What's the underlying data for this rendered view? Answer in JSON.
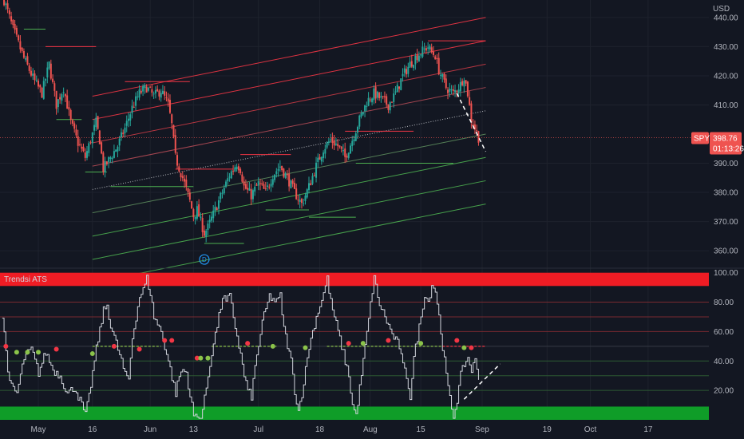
{
  "chart_data": [
    {
      "type": "candlestick",
      "symbol": "SPY",
      "currency": "USD",
      "last_price": "398.76",
      "countdown": "01:13:26",
      "ylim": [
        354,
        446
      ],
      "y_ticks": [
        "440.00",
        "430.00",
        "420.00",
        "410.00",
        "390.00",
        "380.00",
        "370.00",
        "360.00"
      ],
      "y_tick_values": [
        440,
        430,
        420,
        410,
        390,
        380,
        370,
        360
      ],
      "x_labels": [
        {
          "label": "May",
          "day": 0
        },
        {
          "label": "16",
          "day": 15
        },
        {
          "label": "Jun",
          "day": 31
        },
        {
          "label": "13",
          "day": 43
        },
        {
          "label": "Jul",
          "day": 61
        },
        {
          "label": "18",
          "day": 78
        },
        {
          "label": "Aug",
          "day": 92
        },
        {
          "label": "15",
          "day": 106
        },
        {
          "label": "Sep",
          "day": 123
        },
        {
          "label": "19",
          "day": 141
        },
        {
          "label": "Oct",
          "day": 153
        },
        {
          "label": "17",
          "day": 169
        }
      ],
      "price_path": [
        {
          "day": -10,
          "price": 448
        },
        {
          "day": -7,
          "price": 436
        },
        {
          "day": -4,
          "price": 426
        },
        {
          "day": -1,
          "price": 418
        },
        {
          "day": 1,
          "price": 414
        },
        {
          "day": 3,
          "price": 424
        },
        {
          "day": 5,
          "price": 410
        },
        {
          "day": 7,
          "price": 416
        },
        {
          "day": 9,
          "price": 404
        },
        {
          "day": 11,
          "price": 397
        },
        {
          "day": 13,
          "price": 392
        },
        {
          "day": 15,
          "price": 400
        },
        {
          "day": 16,
          "price": 404
        },
        {
          "day": 17,
          "price": 398
        },
        {
          "day": 18,
          "price": 388
        },
        {
          "day": 20,
          "price": 392
        },
        {
          "day": 22,
          "price": 396
        },
        {
          "day": 24,
          "price": 402
        },
        {
          "day": 26,
          "price": 409
        },
        {
          "day": 28,
          "price": 414
        },
        {
          "day": 30,
          "price": 416
        },
        {
          "day": 32,
          "price": 413
        },
        {
          "day": 34,
          "price": 415
        },
        {
          "day": 36,
          "price": 410
        },
        {
          "day": 37,
          "price": 403
        },
        {
          "day": 38,
          "price": 392
        },
        {
          "day": 40,
          "price": 385
        },
        {
          "day": 42,
          "price": 377
        },
        {
          "day": 43,
          "price": 372
        },
        {
          "day": 44,
          "price": 374
        },
        {
          "day": 46,
          "price": 366
        },
        {
          "day": 47,
          "price": 368
        },
        {
          "day": 49,
          "price": 374
        },
        {
          "day": 51,
          "price": 380
        },
        {
          "day": 53,
          "price": 386
        },
        {
          "day": 55,
          "price": 390
        },
        {
          "day": 56,
          "price": 388
        },
        {
          "day": 57,
          "price": 382
        },
        {
          "day": 59,
          "price": 379
        },
        {
          "day": 61,
          "price": 383
        },
        {
          "day": 63,
          "price": 380
        },
        {
          "day": 65,
          "price": 386
        },
        {
          "day": 67,
          "price": 389
        },
        {
          "day": 69,
          "price": 385
        },
        {
          "day": 71,
          "price": 380
        },
        {
          "day": 73,
          "price": 376
        },
        {
          "day": 75,
          "price": 382
        },
        {
          "day": 77,
          "price": 389
        },
        {
          "day": 79,
          "price": 395
        },
        {
          "day": 81,
          "price": 398
        },
        {
          "day": 83,
          "price": 396
        },
        {
          "day": 85,
          "price": 392
        },
        {
          "day": 87,
          "price": 398
        },
        {
          "day": 89,
          "price": 405
        },
        {
          "day": 91,
          "price": 411
        },
        {
          "day": 93,
          "price": 414
        },
        {
          "day": 95,
          "price": 412
        },
        {
          "day": 97,
          "price": 410
        },
        {
          "day": 99,
          "price": 414
        },
        {
          "day": 101,
          "price": 420
        },
        {
          "day": 103,
          "price": 424
        },
        {
          "day": 105,
          "price": 427
        },
        {
          "day": 107,
          "price": 429
        },
        {
          "day": 108,
          "price": 430
        },
        {
          "day": 109,
          "price": 428
        },
        {
          "day": 110,
          "price": 427
        },
        {
          "day": 111,
          "price": 422
        },
        {
          "day": 113,
          "price": 416
        },
        {
          "day": 115,
          "price": 414
        },
        {
          "day": 117,
          "price": 417
        },
        {
          "day": 118,
          "price": 420
        },
        {
          "day": 119,
          "price": 414
        },
        {
          "day": 120,
          "price": 405
        },
        {
          "day": 121,
          "price": 402
        },
        {
          "day": 122,
          "price": 398.8
        }
      ],
      "channel_lines": [
        {
          "from": [
            15,
            413
          ],
          "to": [
            124,
            440
          ],
          "color": "#f23645"
        },
        {
          "from": [
            15,
            405
          ],
          "to": [
            124,
            432
          ],
          "color": "#f23645"
        },
        {
          "from": [
            15,
            397
          ],
          "to": [
            124,
            424
          ],
          "color": "#c73a45"
        },
        {
          "from": [
            15,
            389
          ],
          "to": [
            124,
            416
          ],
          "color": "#b34a55"
        },
        {
          "from": [
            15,
            381
          ],
          "to": [
            124,
            408
          ],
          "color": "#787b86",
          "dashed": true
        },
        {
          "from": [
            15,
            373
          ],
          "to": [
            124,
            400
          ],
          "color": "#5b8a5c"
        },
        {
          "from": [
            15,
            365
          ],
          "to": [
            124,
            392
          ],
          "color": "#4caf50"
        },
        {
          "from": [
            15,
            357
          ],
          "to": [
            124,
            384
          ],
          "color": "#4caf50"
        },
        {
          "from": [
            15,
            349
          ],
          "to": [
            124,
            376
          ],
          "color": "#4caf50"
        }
      ],
      "resistance_lines": [
        {
          "day1": 2,
          "day2": 16,
          "price": 430
        },
        {
          "day1": 24,
          "day2": 42,
          "price": 418
        },
        {
          "day1": 38,
          "day2": 54,
          "price": 388
        },
        {
          "day1": 56,
          "day2": 70,
          "price": 393
        },
        {
          "day1": 85,
          "day2": 104,
          "price": 401
        },
        {
          "day1": 108,
          "day2": 124,
          "price": 432
        }
      ],
      "support_lines": [
        {
          "day1": -4,
          "day2": 2,
          "price": 436
        },
        {
          "day1": 5,
          "day2": 12,
          "price": 405
        },
        {
          "day1": 13,
          "day2": 19,
          "price": 387
        },
        {
          "day1": 20,
          "day2": 43,
          "price": 382
        },
        {
          "day1": 46,
          "day2": 57,
          "price": 362.5
        },
        {
          "day1": 63,
          "day2": 75,
          "price": 374
        },
        {
          "day1": 75,
          "day2": 88,
          "price": 371.5
        },
        {
          "day1": 88,
          "day2": 115,
          "price": 390
        }
      ],
      "trend_dash": {
        "from": [
          116,
          414
        ],
        "to": [
          124,
          394
        ]
      },
      "dividend_marker": {
        "day": 46,
        "price": 357,
        "label": "D"
      }
    },
    {
      "type": "line",
      "title": "Trendsi ATS",
      "ylim": [
        0,
        102
      ],
      "y_ticks": [
        "100.00",
        "80.00",
        "60.00",
        "40.00",
        "20.00"
      ],
      "y_tick_values": [
        100,
        80,
        60,
        40,
        20
      ],
      "overbought_band": [
        91,
        100
      ],
      "oversold_band": [
        0,
        9
      ],
      "level_lines": [
        80,
        70,
        60,
        40,
        30,
        20
      ],
      "midline": 50,
      "osc_path": [
        {
          "day": -10,
          "value": 70
        },
        {
          "day": -8,
          "value": 24
        },
        {
          "day": -6,
          "value": 18
        },
        {
          "day": -4,
          "value": 42
        },
        {
          "day": -2,
          "value": 48
        },
        {
          "day": 0,
          "value": 32
        },
        {
          "day": 2,
          "value": 46
        },
        {
          "day": 4,
          "value": 34
        },
        {
          "day": 6,
          "value": 30
        },
        {
          "day": 8,
          "value": 18
        },
        {
          "day": 10,
          "value": 22
        },
        {
          "day": 12,
          "value": 10
        },
        {
          "day": 13,
          "value": 3
        },
        {
          "day": 14,
          "value": 16
        },
        {
          "day": 16,
          "value": 48
        },
        {
          "day": 18,
          "value": 74
        },
        {
          "day": 19,
          "value": 78
        },
        {
          "day": 20,
          "value": 64
        },
        {
          "day": 22,
          "value": 48
        },
        {
          "day": 23,
          "value": 40
        },
        {
          "day": 24,
          "value": 30
        },
        {
          "day": 25,
          "value": 28
        },
        {
          "day": 26,
          "value": 56
        },
        {
          "day": 28,
          "value": 84
        },
        {
          "day": 29,
          "value": 88
        },
        {
          "day": 30,
          "value": 96
        },
        {
          "day": 31,
          "value": 86
        },
        {
          "day": 32,
          "value": 70
        },
        {
          "day": 34,
          "value": 60
        },
        {
          "day": 36,
          "value": 40
        },
        {
          "day": 38,
          "value": 18
        },
        {
          "day": 39,
          "value": 30
        },
        {
          "day": 40,
          "value": 34
        },
        {
          "day": 41,
          "value": 32
        },
        {
          "day": 42,
          "value": 16
        },
        {
          "day": 43,
          "value": 3
        },
        {
          "day": 45,
          "value": 1
        },
        {
          "day": 46,
          "value": 14
        },
        {
          "day": 48,
          "value": 46
        },
        {
          "day": 50,
          "value": 70
        },
        {
          "day": 51,
          "value": 84
        },
        {
          "day": 52,
          "value": 80
        },
        {
          "day": 53,
          "value": 84
        },
        {
          "day": 54,
          "value": 70
        },
        {
          "day": 56,
          "value": 44
        },
        {
          "day": 57,
          "value": 30
        },
        {
          "day": 58,
          "value": 20
        },
        {
          "day": 59,
          "value": 16
        },
        {
          "day": 60,
          "value": 36
        },
        {
          "day": 62,
          "value": 66
        },
        {
          "day": 64,
          "value": 84
        },
        {
          "day": 66,
          "value": 80
        },
        {
          "day": 67,
          "value": 84
        },
        {
          "day": 68,
          "value": 62
        },
        {
          "day": 70,
          "value": 40
        },
        {
          "day": 71,
          "value": 20
        },
        {
          "day": 72,
          "value": 6
        },
        {
          "day": 73,
          "value": 18
        },
        {
          "day": 75,
          "value": 50
        },
        {
          "day": 77,
          "value": 70
        },
        {
          "day": 79,
          "value": 86
        },
        {
          "day": 80,
          "value": 96
        },
        {
          "day": 81,
          "value": 80
        },
        {
          "day": 82,
          "value": 70
        },
        {
          "day": 84,
          "value": 50
        },
        {
          "day": 86,
          "value": 30
        },
        {
          "day": 87,
          "value": 10
        },
        {
          "day": 88,
          "value": 3
        },
        {
          "day": 90,
          "value": 40
        },
        {
          "day": 92,
          "value": 78
        },
        {
          "day": 93,
          "value": 98
        },
        {
          "day": 94,
          "value": 82
        },
        {
          "day": 96,
          "value": 70
        },
        {
          "day": 98,
          "value": 58
        },
        {
          "day": 100,
          "value": 50
        },
        {
          "day": 101,
          "value": 36
        },
        {
          "day": 102,
          "value": 30
        },
        {
          "day": 103,
          "value": 16
        },
        {
          "day": 104,
          "value": 42
        },
        {
          "day": 106,
          "value": 70
        },
        {
          "day": 107,
          "value": 86
        },
        {
          "day": 108,
          "value": 80
        },
        {
          "day": 109,
          "value": 92
        },
        {
          "day": 110,
          "value": 88
        },
        {
          "day": 111,
          "value": 70
        },
        {
          "day": 112,
          "value": 50
        },
        {
          "day": 113,
          "value": 30
        },
        {
          "day": 114,
          "value": 14
        },
        {
          "day": 115,
          "value": 2
        },
        {
          "day": 116,
          "value": 14
        },
        {
          "day": 117,
          "value": 30
        },
        {
          "day": 118,
          "value": 38
        },
        {
          "day": 119,
          "value": 42
        },
        {
          "day": 120,
          "value": 34
        },
        {
          "day": 121,
          "value": 40
        },
        {
          "day": 122,
          "value": 30
        }
      ],
      "dashed_mid_segments": [
        {
          "day1": 15,
          "day2": 34,
          "color": "#8bc34a"
        },
        {
          "day1": 48,
          "day2": 66,
          "color": "#8bc34a"
        },
        {
          "day1": 80,
          "day2": 112,
          "color": "#8bc34a"
        },
        {
          "day1": 112,
          "day2": 124,
          "color": "#f23645"
        }
      ],
      "dots": [
        {
          "day": -9,
          "value": 50,
          "color": "#f23645"
        },
        {
          "day": -6,
          "value": 46,
          "color": "#8bc34a"
        },
        {
          "day": -3,
          "value": 46,
          "color": "#8bc34a"
        },
        {
          "day": 0,
          "value": 46,
          "color": "#8bc34a"
        },
        {
          "day": 5,
          "value": 48,
          "color": "#f23645"
        },
        {
          "day": 15,
          "value": 45,
          "color": "#8bc34a"
        },
        {
          "day": 21,
          "value": 50,
          "color": "#f23645"
        },
        {
          "day": 28,
          "value": 48,
          "color": "#f23645"
        },
        {
          "day": 35,
          "value": 54,
          "color": "#f23645"
        },
        {
          "day": 37,
          "value": 54,
          "color": "#f23645"
        },
        {
          "day": 44,
          "value": 42,
          "color": "#f23645"
        },
        {
          "day": 45,
          "value": 42,
          "color": "#8bc34a"
        },
        {
          "day": 47,
          "value": 42,
          "color": "#8bc34a"
        },
        {
          "day": 58,
          "value": 52,
          "color": "#f23645"
        },
        {
          "day": 65,
          "value": 50,
          "color": "#8bc34a"
        },
        {
          "day": 74,
          "value": 49,
          "color": "#8bc34a"
        },
        {
          "day": 86,
          "value": 52,
          "color": "#f23645"
        },
        {
          "day": 90,
          "value": 52,
          "color": "#8bc34a"
        },
        {
          "day": 97,
          "value": 54,
          "color": "#f23645"
        },
        {
          "day": 106,
          "value": 52,
          "color": "#8bc34a"
        },
        {
          "day": 116,
          "value": 54,
          "color": "#f23645"
        },
        {
          "day": 120,
          "value": 49,
          "color": "#f23645"
        },
        {
          "day": 118,
          "value": 49,
          "color": "#8bc34a"
        }
      ],
      "trend_dash": {
        "from": [
          118,
          14
        ],
        "to": [
          128,
          38
        ]
      }
    }
  ],
  "colors": {
    "background": "#131722",
    "up": "#26a69a",
    "down": "#ef5350",
    "grid": "#1e222d",
    "price_tag": "#ef5350",
    "overbought": "#ef1c24",
    "oversold": "#0f9d28"
  }
}
